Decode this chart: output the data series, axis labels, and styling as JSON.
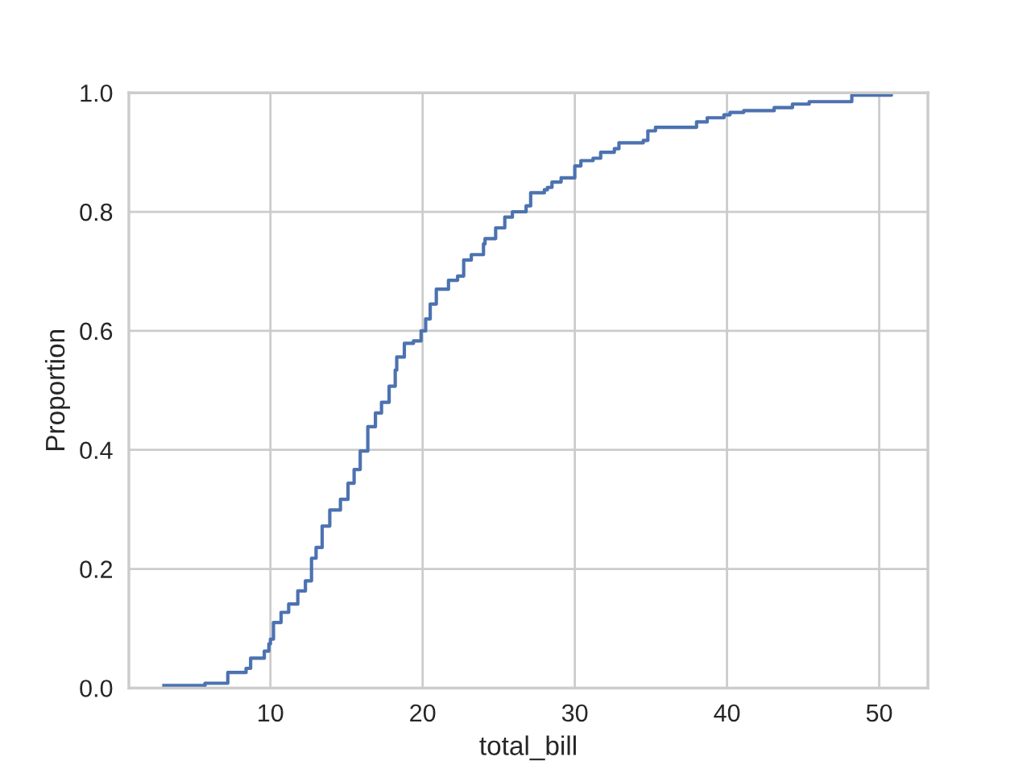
{
  "chart_data": {
    "type": "step",
    "xlabel": "total_bill",
    "ylabel": "Proportion",
    "color": "#4c72b0",
    "line_style": "solid",
    "grid": true,
    "x": [
      3.0,
      5.7,
      7.2,
      8.4,
      8.7,
      9.6,
      9.9,
      10.0,
      10.2,
      10.7,
      11.2,
      11.8,
      12.3,
      12.7,
      13.0,
      13.4,
      13.9,
      14.6,
      15.1,
      15.5,
      15.9,
      16.4,
      16.9,
      17.3,
      17.8,
      18.2,
      18.3,
      18.8,
      19.4,
      19.9,
      20.2,
      20.5,
      20.9,
      21.7,
      22.3,
      22.7,
      23.2,
      24.0,
      24.1,
      24.8,
      25.4,
      25.9,
      26.8,
      27.1,
      28.0,
      28.2,
      28.5,
      29.1,
      30.0,
      30.4,
      31.2,
      31.7,
      32.6,
      32.9,
      34.5,
      34.8,
      35.3,
      38.0,
      38.7,
      39.8,
      40.2,
      41.1,
      43.1,
      44.3,
      45.4,
      48.2,
      50.8
    ],
    "values": [
      0.004,
      0.008,
      0.026,
      0.033,
      0.05,
      0.062,
      0.074,
      0.082,
      0.11,
      0.127,
      0.141,
      0.163,
      0.18,
      0.218,
      0.236,
      0.272,
      0.299,
      0.317,
      0.344,
      0.367,
      0.398,
      0.439,
      0.462,
      0.48,
      0.507,
      0.534,
      0.556,
      0.579,
      0.583,
      0.6,
      0.62,
      0.645,
      0.67,
      0.685,
      0.692,
      0.719,
      0.728,
      0.746,
      0.755,
      0.773,
      0.791,
      0.8,
      0.81,
      0.832,
      0.837,
      0.841,
      0.85,
      0.857,
      0.877,
      0.886,
      0.89,
      0.9,
      0.906,
      0.916,
      0.92,
      0.936,
      0.942,
      0.951,
      0.958,
      0.963,
      0.967,
      0.97,
      0.975,
      0.981,
      0.985,
      0.996,
      1.0
    ],
    "xlim": [
      0.7,
      53.2
    ],
    "xticks": [
      10,
      20,
      30,
      40,
      50
    ],
    "ylim": [
      0,
      1
    ],
    "yticks": [
      {
        "value": 0,
        "label": "0.0"
      },
      0.2,
      0.4,
      0.6,
      0.8,
      {
        "value": 1,
        "label": "1.0"
      }
    ]
  }
}
